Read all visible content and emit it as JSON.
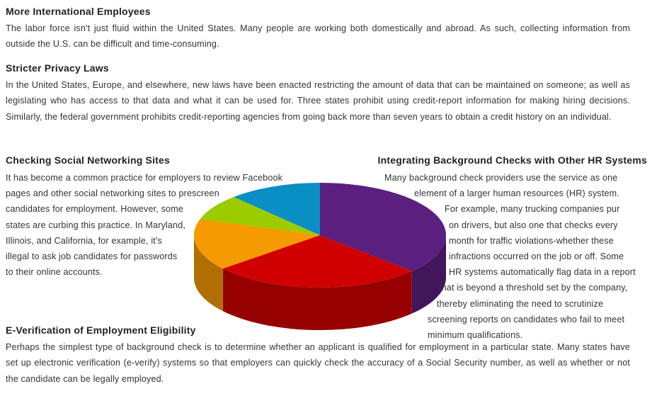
{
  "sections": {
    "intl": {
      "title": "More International Employees",
      "body": "The labor force isn't just fluid within the United States. Many people are working both domestically and abroad. As such, collecting information from outside the U.S. can be difficult and time-consuming."
    },
    "privacy": {
      "title": "Stricter Privacy Laws",
      "body": "In the United States, Europe, and elsewhere, new laws have been enacted restricting the amount of data that can be maintained on someone; as well as legislating who has access to that data and what it can be used for. Three states prohibit using credit-report information for making hiring decisions. Similarly, the federal government prohibits credit-reporting agencies from going back more than seven years to obtain a credit history on an individual."
    },
    "social": {
      "title": "Checking Social Networking Sites",
      "lines": [
        "It has become a common practice for employers to review Facebook",
        "pages and other social networking sites to prescreen",
        "candidates for employment. However, some",
        "states are curbing this practice. In Maryland,",
        "Illinois, and California, for example, it's",
        "illegal to ask job candidates for passwords",
        "to their online accounts."
      ]
    },
    "hr": {
      "title": "Integrating Background Checks with Other HR Systems",
      "lines": [
        "Many background check providers use the service as one",
        "element of a larger human resources (HR) system.",
        "For example, many trucking companies pur",
        "on drivers, but also one that checks every",
        "month for traffic violations-whether these",
        "infractions occurred on the job or off. Some",
        "HR systems automatically flag data in a report",
        "that is beyond a threshold set by the company,",
        "thereby eliminating the need to scrutinize",
        "screening reports on candidates who fail to meet",
        "minimum qualifications."
      ]
    },
    "everify": {
      "title": "E-Verification of Employment Eligibility",
      "body": "Perhaps the simplest type of background check is to determine whether an applicant is qualified for employment in a particular state. Many states have set up electronic verification (e-verify) systems so that employers can quickly check the accuracy of a Social Security number, as well as whether or not the candidate can be legally employed."
    }
  },
  "pie_illustration": {
    "slices": [
      {
        "fraction": 0.37,
        "color": "#5a1f7f"
      },
      {
        "fraction": 0.27,
        "color": "#d10000"
      },
      {
        "fraction": 0.16,
        "color": "#f59a00"
      },
      {
        "fraction": 0.08,
        "color": "#9ccc00"
      },
      {
        "fraction": 0.12,
        "color": "#0a8fc4"
      }
    ]
  }
}
